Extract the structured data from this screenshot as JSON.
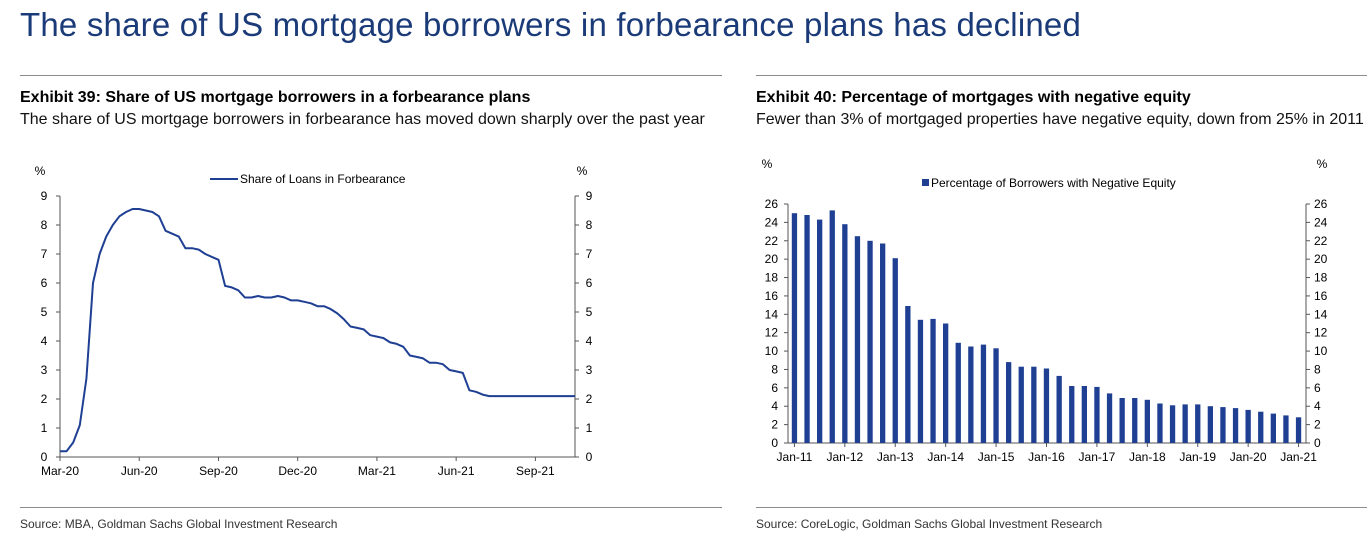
{
  "headline": "The share of US mortgage borrowers in forbearance plans has declined",
  "colors": {
    "headline": "#1a3a78",
    "series": "#1f3f93",
    "rule": "#8c8c8c"
  },
  "exhibit39": {
    "title": "Exhibit 39: Share of US mortgage borrowers in a forbearance plans",
    "subtitle": "The share of US mortgage borrowers in forbearance has moved down sharply over the past year",
    "source": "Source: MBA, Goldman Sachs Global Investment Research"
  },
  "exhibit40": {
    "title": "Exhibit 40: Percentage of mortgages with negative equity",
    "subtitle": "Fewer than 3% of mortgaged properties have negative equity, down from 25% in 2011",
    "source": "Source: CoreLogic, Goldman Sachs Global Investment Research"
  },
  "chart_data": [
    {
      "id": "exhibit39",
      "type": "line",
      "title": "Exhibit 39: Share of US mortgage borrowers in a forbearance plans",
      "ylabel_left": "%",
      "ylabel_right": "%",
      "ylim": [
        0,
        9
      ],
      "yticks": [
        "0",
        "1",
        "2",
        "3",
        "4",
        "5",
        "6",
        "7",
        "8",
        "9"
      ],
      "x_ticks": [
        "Mar-20",
        "Jun-20",
        "Sep-20",
        "Dec-20",
        "Mar-21",
        "Jun-21",
        "Sep-21"
      ],
      "legend": "Share of Loans in Forbearance",
      "legend_position": "top-center",
      "series": [
        {
          "name": "Share of Loans in Forbearance",
          "x": [
            0.0,
            0.25,
            0.5,
            0.75,
            1.0,
            1.25,
            1.5,
            1.75,
            2.0,
            2.25,
            2.5,
            2.75,
            3.0,
            3.25,
            3.5,
            3.75,
            4.0,
            4.25,
            4.5,
            4.75,
            5.0,
            5.25,
            5.5,
            5.75,
            6.0,
            6.25,
            6.5,
            6.75,
            7.0,
            7.25,
            7.5,
            7.75,
            8.0,
            8.25,
            8.5,
            8.75,
            9.0,
            9.25,
            9.5,
            9.75,
            10.0,
            10.25,
            10.5,
            10.75,
            11.0,
            11.25,
            11.5,
            11.75,
            12.0,
            12.25,
            12.5,
            12.75,
            13.0,
            13.25,
            13.5,
            13.75,
            14.0,
            14.25,
            14.5,
            14.75,
            15.0,
            15.25,
            15.5,
            15.75,
            16.0,
            16.25,
            16.5,
            16.75,
            17.0,
            17.25,
            17.5,
            17.75,
            18.0,
            18.25,
            18.5,
            18.75,
            19.0,
            19.25,
            19.5,
            19.75
          ],
          "values": [
            0.2,
            0.2,
            0.5,
            1.1,
            2.7,
            6.0,
            7.0,
            7.6,
            8.0,
            8.3,
            8.45,
            8.55,
            8.55,
            8.5,
            8.45,
            8.3,
            7.8,
            7.7,
            7.6,
            7.2,
            7.2,
            7.15,
            7.0,
            6.9,
            6.8,
            5.9,
            5.85,
            5.75,
            5.5,
            5.5,
            5.55,
            5.5,
            5.5,
            5.55,
            5.5,
            5.4,
            5.4,
            5.35,
            5.3,
            5.2,
            5.2,
            5.1,
            4.95,
            4.75,
            4.5,
            4.45,
            4.4,
            4.2,
            4.15,
            4.1,
            3.95,
            3.9,
            3.8,
            3.5,
            3.45,
            3.4,
            3.25,
            3.25,
            3.2,
            3.0,
            2.95,
            2.9,
            2.3,
            2.25,
            2.15,
            2.1,
            2.1,
            2.1,
            2.1,
            2.1,
            2.1,
            2.1,
            2.1,
            2.1,
            2.1,
            2.1,
            2.1,
            2.1,
            2.1,
            2.1
          ]
        }
      ]
    },
    {
      "id": "exhibit40",
      "type": "bar",
      "title": "Exhibit 40: Percentage of mortgages with negative equity",
      "ylabel_left": "%",
      "ylabel_right": "%",
      "ylim": [
        0,
        26
      ],
      "yticks": [
        "0",
        "2",
        "4",
        "6",
        "8",
        "10",
        "12",
        "14",
        "16",
        "18",
        "20",
        "22",
        "24",
        "26"
      ],
      "x_ticks": [
        "Jan-11",
        "Jan-12",
        "Jan-13",
        "Jan-14",
        "Jan-15",
        "Jan-16",
        "Jan-17",
        "Jan-18",
        "Jan-19",
        "Jan-20",
        "Jan-21"
      ],
      "legend": "Percentage of Borrowers with Negative Equity",
      "legend_position": "top-center",
      "series": [
        {
          "name": "Percentage of Borrowers with Negative Equity",
          "categories": [
            "Q1-11",
            "Q2-11",
            "Q3-11",
            "Q4-11",
            "Q1-12",
            "Q2-12",
            "Q3-12",
            "Q4-12",
            "Q1-13",
            "Q2-13",
            "Q3-13",
            "Q4-13",
            "Q1-14",
            "Q2-14",
            "Q3-14",
            "Q4-14",
            "Q1-15",
            "Q2-15",
            "Q3-15",
            "Q4-15",
            "Q1-16",
            "Q2-16",
            "Q3-16",
            "Q4-16",
            "Q1-17",
            "Q2-17",
            "Q3-17",
            "Q4-17",
            "Q1-18",
            "Q2-18",
            "Q3-18",
            "Q4-18",
            "Q1-19",
            "Q2-19",
            "Q3-19",
            "Q4-19",
            "Q1-20",
            "Q2-20",
            "Q3-20",
            "Q4-20",
            "Q1-21"
          ],
          "values": [
            25.0,
            24.8,
            24.3,
            25.3,
            23.8,
            22.5,
            22.0,
            21.7,
            20.1,
            14.9,
            13.4,
            13.5,
            13.0,
            10.9,
            10.5,
            10.7,
            10.3,
            8.8,
            8.3,
            8.3,
            8.1,
            7.3,
            6.2,
            6.2,
            6.1,
            5.4,
            4.9,
            4.9,
            4.7,
            4.3,
            4.1,
            4.2,
            4.2,
            4.0,
            3.9,
            3.8,
            3.6,
            3.4,
            3.2,
            3.0,
            2.8
          ]
        }
      ]
    }
  ]
}
